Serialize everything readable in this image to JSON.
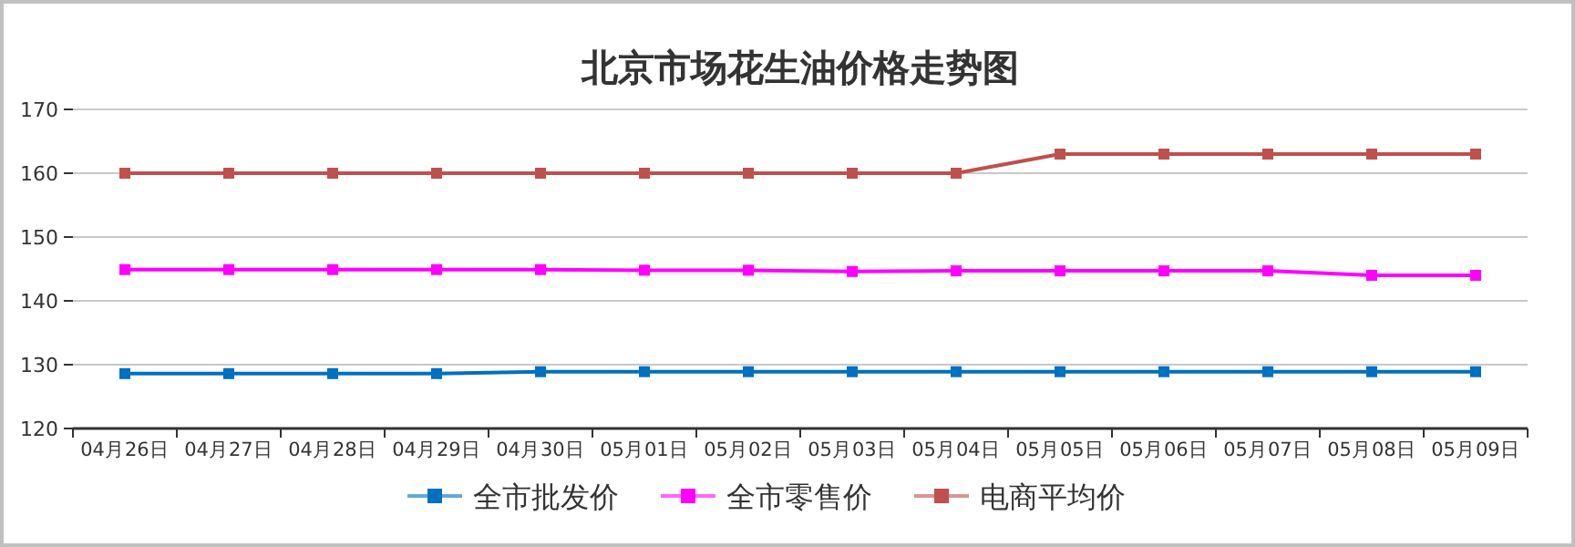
{
  "chart_data": {
    "type": "line",
    "title": "北京市场花生油价格走势图",
    "categories": [
      "04月26日",
      "04月27日",
      "04月28日",
      "04月29日",
      "04月30日",
      "05月01日",
      "05月02日",
      "05月03日",
      "05月04日",
      "05月05日",
      "05月06日",
      "05月07日",
      "05月08日",
      "05月09日"
    ],
    "series": [
      {
        "name": "全市批发价",
        "color": "#0070c0",
        "values": [
          128.6,
          128.6,
          128.6,
          128.6,
          128.9,
          128.9,
          128.9,
          128.9,
          128.9,
          128.9,
          128.9,
          128.9,
          128.9,
          128.9
        ]
      },
      {
        "name": "全市零售价",
        "color": "#ff00ff",
        "values": [
          144.9,
          144.9,
          144.9,
          144.9,
          144.9,
          144.8,
          144.8,
          144.6,
          144.7,
          144.7,
          144.7,
          144.7,
          144.0,
          144.0
        ]
      },
      {
        "name": "电商平均价",
        "color": "#c0504d",
        "values": [
          160,
          160,
          160,
          160,
          160,
          160,
          160,
          160,
          160,
          163,
          163,
          163,
          163,
          163
        ]
      }
    ],
    "ylim": [
      120,
      170
    ],
    "yticks": [
      120,
      130,
      140,
      150,
      160,
      170
    ],
    "grid": "y",
    "legend": "bottom",
    "marker": "square",
    "line_style": "solid"
  }
}
